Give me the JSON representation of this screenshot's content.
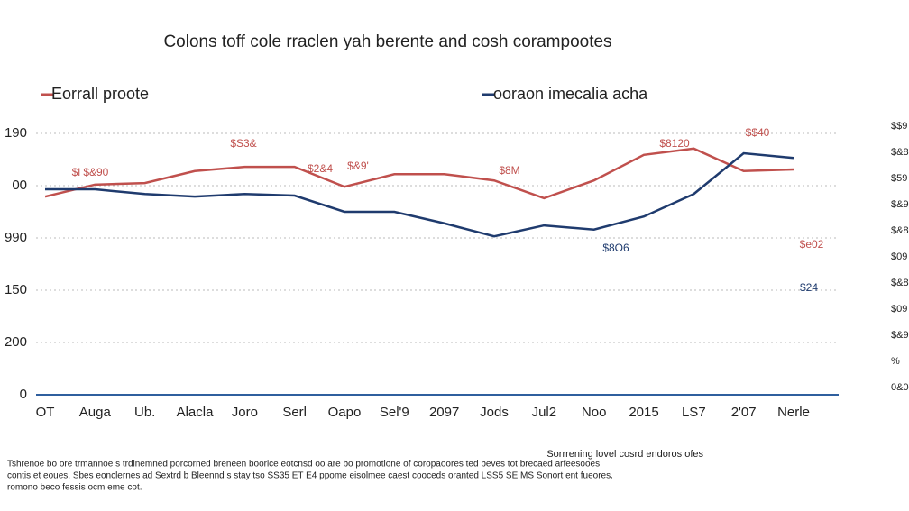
{
  "chart_data": {
    "type": "line",
    "title": "Colons toff cole rraclen yah berente and cosh corampootes",
    "categories": [
      "OT",
      "Auga",
      "Ub.",
      "Alacla",
      "Joro",
      "Serl",
      "Oapo",
      "Sel'9",
      "2097",
      "Jods",
      "Jul2",
      "Noo",
      "2015",
      "LS7",
      "2'07",
      "Nerle"
    ],
    "series": [
      {
        "name": "Eorrall proote",
        "color": "#c0504d",
        "values": [
          3.79,
          4.02,
          4.05,
          4.28,
          4.36,
          4.36,
          3.98,
          4.22,
          4.22,
          4.1,
          3.76,
          4.1,
          4.59,
          4.71,
          4.28,
          4.31
        ]
      },
      {
        "name": "oorаon imecalia acha",
        "color": "#1f3b6e",
        "values": [
          3.93,
          3.93,
          3.84,
          3.79,
          3.84,
          3.81,
          3.5,
          3.5,
          3.28,
          3.03,
          3.24,
          3.16,
          3.41,
          3.84,
          4.62,
          4.53
        ]
      }
    ],
    "ylim": [
      0,
      5.5
    ],
    "yticks": [
      0,
      {
        "value": 1,
        "label": "200"
      },
      {
        "value": 2,
        "label": "150"
      },
      {
        "value": 3,
        "label": "990"
      },
      {
        "value": 4,
        "label": "00"
      },
      {
        "value": 5,
        "label": "190"
      }
    ],
    "grid": true,
    "annotations": [
      "$S3&",
      "$l $&90",
      "$2&4",
      "$&9'",
      "$8M",
      "$8120",
      "$$40",
      "$8O6",
      "$e02",
      "$24"
    ],
    "right_labels": [
      "$$9",
      "$&8",
      "$59",
      "$&9",
      "$&8",
      "$09",
      "$&8",
      "$09",
      "$&9",
      "%",
      "0&0"
    ],
    "source": "Sorrrening lovel cosrd endoros ofes",
    "footnotes": [
      "Tshrenoe bo ore trmannoe s trdlnemned porcorned breneen boorice eotcnsd oo are bo promotlone of coropaoores ted beves tot brecaed arfeesooes.",
      "contis et eoues, Sbes eonclernes ad Sextrd b Bleennd s stay tso SS35 ET E4 ppome eisolmee caest cooceds oranted LSS5 SE MS Sonort ent fueores.",
      "romono beco fessis ocm eme cot."
    ]
  }
}
